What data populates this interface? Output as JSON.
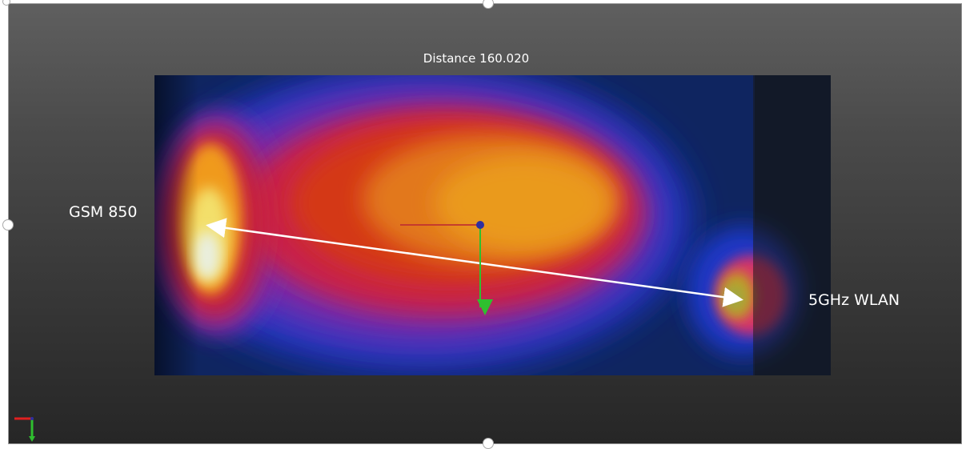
{
  "viewer": {
    "measurement_label": "Distance 160.020",
    "ports": [
      {
        "label": "GSM 850"
      },
      {
        "label": "5GHz WLAN"
      }
    ]
  },
  "colors": {
    "background_top": "#5f5f5f",
    "background_bottom": "#262626",
    "measure_line": "#ffffff",
    "axis_x": "#e02020",
    "axis_y": "#2fbf2f",
    "pivot": "#3030a0"
  },
  "icons": {
    "view_axes": "xyz-axis-triad-icon",
    "selection_handle": "resize-handle-icon"
  }
}
